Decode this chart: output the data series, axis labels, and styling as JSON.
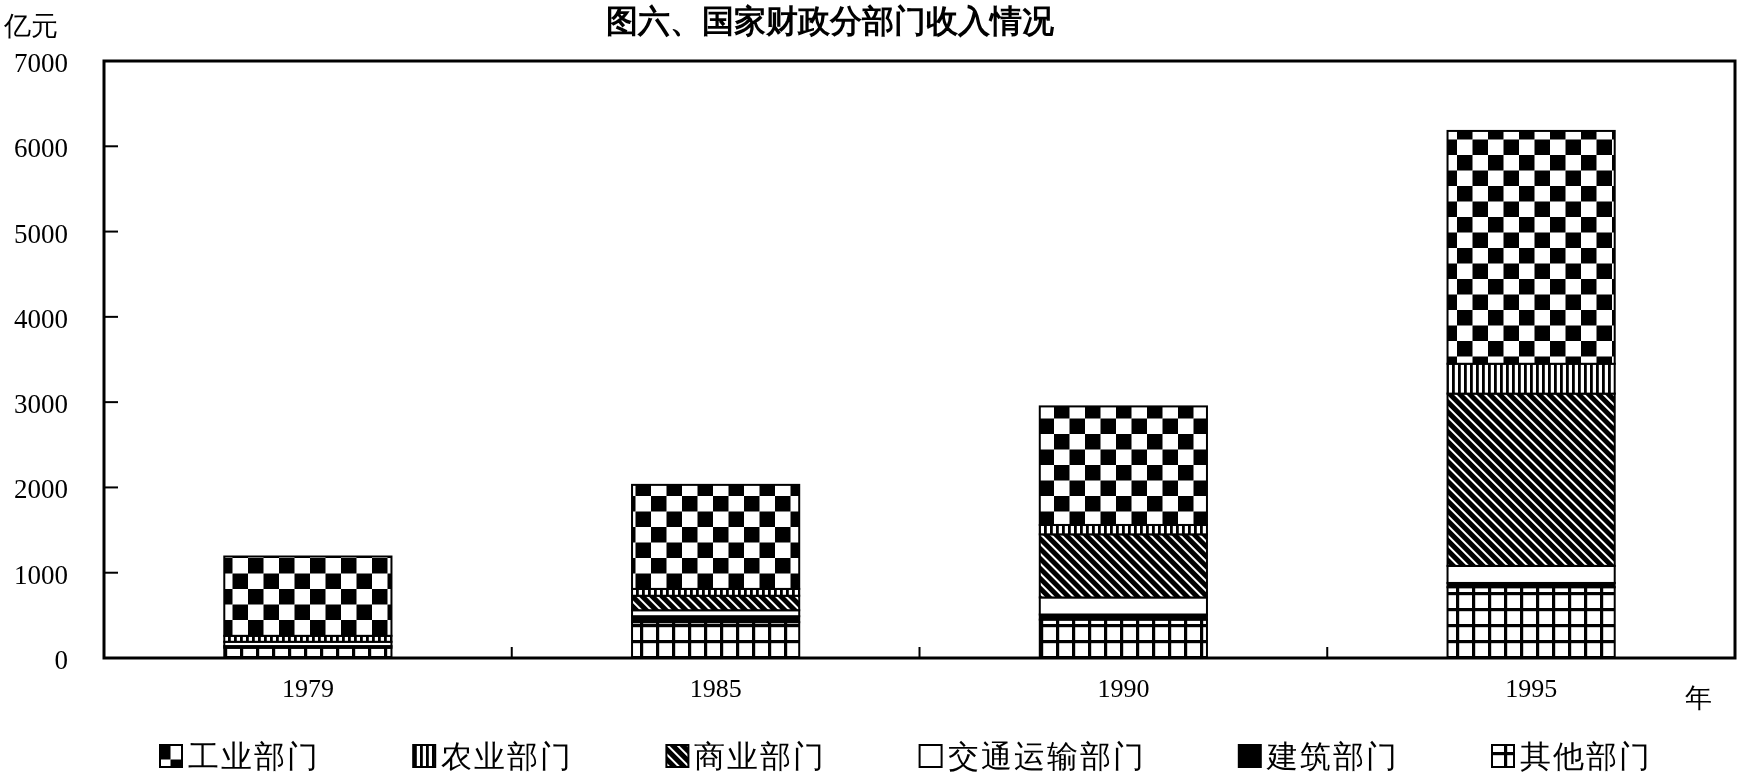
{
  "chart_data": {
    "type": "bar",
    "title": "图六、国家财政分部门收入情况",
    "ylabel": "亿元",
    "xlabel": "年",
    "categories": [
      "1979",
      "1985",
      "1990",
      "1995"
    ],
    "stacked": true,
    "legend": "bottom",
    "series": [
      {
        "name": "其他部门",
        "color": "#000000",
        "values": [
          120,
          420,
          450,
          830
        ]
      },
      {
        "name": "建筑部门",
        "color": "#000000",
        "values": [
          20,
          70,
          60,
          50
        ]
      },
      {
        "name": "交通运输部门",
        "color": "#ffffff",
        "values": [
          50,
          70,
          200,
          200
        ]
      },
      {
        "name": "商业部门",
        "color": "#000000",
        "values": [
          0,
          170,
          740,
          2020
        ]
      },
      {
        "name": "农业部门",
        "color": "#000000",
        "values": [
          70,
          80,
          110,
          350
        ]
      },
      {
        "name": "工业部门",
        "color": "#000000",
        "values": [
          930,
          1220,
          1390,
          2730
        ]
      }
    ],
    "ylim": [
      0,
      7000
    ],
    "yticks": [
      0,
      1000,
      2000,
      3000,
      4000,
      5000,
      6000,
      7000
    ]
  }
}
